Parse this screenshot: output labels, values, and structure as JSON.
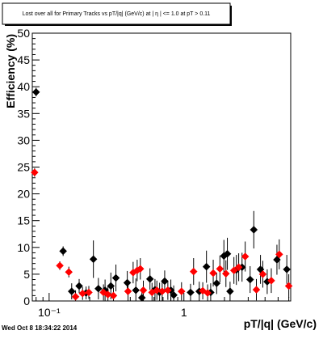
{
  "chart_data": {
    "type": "scatter",
    "title": "Lost over all for Primary Tracks vs pT/|q| (GeV/c) at |  η | <= 1.0 at pT > 0.11",
    "xlabel": "pT/|q| (GeV/c)",
    "ylabel": "Efficiency (%)",
    "x_scale": "log",
    "xlim": [
      0.075,
      6.2
    ],
    "ylim": [
      0,
      50
    ],
    "y_ticks": [
      0,
      5,
      10,
      15,
      20,
      25,
      30,
      35,
      40,
      45,
      50
    ],
    "y_tick_labels": [
      "0",
      "5",
      "10",
      "15",
      "20",
      "25",
      "30",
      "35",
      "40",
      "45",
      "50"
    ],
    "x_major_ticks": [
      0.1,
      1
    ],
    "x_tick_labels": [
      "10⁻¹",
      "1"
    ],
    "grid": false,
    "legend": "none",
    "series": [
      {
        "color": "#000000",
        "marker": "diamond",
        "points": [
          {
            "x": 0.08,
            "y": 39.0,
            "ey": 0.8
          },
          {
            "x": 0.127,
            "y": 9.3,
            "ey": 0.9
          },
          {
            "x": 0.147,
            "y": 1.8,
            "ey": 1.5
          },
          {
            "x": 0.167,
            "y": 2.8,
            "ey": 1.3
          },
          {
            "x": 0.188,
            "y": 1.5,
            "ey": 1.2
          },
          {
            "x": 0.213,
            "y": 7.8,
            "ey": 3.5
          },
          {
            "x": 0.232,
            "y": 2.3,
            "ey": 2.0
          },
          {
            "x": 0.26,
            "y": 2.0,
            "ey": 2.0
          },
          {
            "x": 0.287,
            "y": 2.8,
            "ey": 2.5
          },
          {
            "x": 0.313,
            "y": 4.3,
            "ey": 2.5
          },
          {
            "x": 0.38,
            "y": 3.4,
            "ey": 2.2
          },
          {
            "x": 0.44,
            "y": 2.0,
            "ey": 2.2
          },
          {
            "x": 0.488,
            "y": 0.6,
            "ey": 1.8
          },
          {
            "x": 0.56,
            "y": 4.1,
            "ey": 2.0
          },
          {
            "x": 0.61,
            "y": 2.1,
            "ey": 2.0
          },
          {
            "x": 0.66,
            "y": 1.6,
            "ey": 1.8
          },
          {
            "x": 0.72,
            "y": 3.7,
            "ey": 2.0
          },
          {
            "x": 0.8,
            "y": 2.0,
            "ey": 2.0
          },
          {
            "x": 0.84,
            "y": 1.1,
            "ey": 1.8
          },
          {
            "x": 1.12,
            "y": 1.6,
            "ey": 1.6
          },
          {
            "x": 1.3,
            "y": 1.8,
            "ey": 1.8
          },
          {
            "x": 1.47,
            "y": 6.4,
            "ey": 3.0
          },
          {
            "x": 1.58,
            "y": 1.6,
            "ey": 1.7
          },
          {
            "x": 1.75,
            "y": 3.3,
            "ey": 2.0
          },
          {
            "x": 1.98,
            "y": 8.4,
            "ey": 3.0
          },
          {
            "x": 2.1,
            "y": 8.8,
            "ey": 3.0
          },
          {
            "x": 2.2,
            "y": 1.8,
            "ey": 1.8
          },
          {
            "x": 2.45,
            "y": 5.8,
            "ey": 2.8
          },
          {
            "x": 2.7,
            "y": 6.3,
            "ey": 2.7
          },
          {
            "x": 3.1,
            "y": 4.0,
            "ey": 2.5
          },
          {
            "x": 3.3,
            "y": 13.3,
            "ey": 3.5
          },
          {
            "x": 3.7,
            "y": 5.9,
            "ey": 2.7
          },
          {
            "x": 4.15,
            "y": 3.6,
            "ey": 2.3
          },
          {
            "x": 4.9,
            "y": 7.7,
            "ey": 2.8
          },
          {
            "x": 5.8,
            "y": 5.9,
            "ey": 2.7
          }
        ]
      },
      {
        "color": "#ff0000",
        "marker": "diamond",
        "points": [
          {
            "x": 0.078,
            "y": 24.0,
            "ey": 0.8
          },
          {
            "x": 0.12,
            "y": 6.6,
            "ey": 0.8
          },
          {
            "x": 0.14,
            "y": 5.4,
            "ey": 1.0
          },
          {
            "x": 0.157,
            "y": 0.8,
            "ey": 1.2
          },
          {
            "x": 0.177,
            "y": 1.4,
            "ey": 1.2
          },
          {
            "x": 0.197,
            "y": 1.6,
            "ey": 1.2
          },
          {
            "x": 0.253,
            "y": 1.6,
            "ey": 1.5
          },
          {
            "x": 0.273,
            "y": 1.2,
            "ey": 1.5
          },
          {
            "x": 0.3,
            "y": 1.0,
            "ey": 1.5
          },
          {
            "x": 0.385,
            "y": 1.8,
            "ey": 1.8
          },
          {
            "x": 0.42,
            "y": 5.3,
            "ey": 2.0
          },
          {
            "x": 0.45,
            "y": 5.7,
            "ey": 2.0
          },
          {
            "x": 0.475,
            "y": 6.0,
            "ey": 2.0
          },
          {
            "x": 0.5,
            "y": 2.0,
            "ey": 1.8
          },
          {
            "x": 0.58,
            "y": 1.6,
            "ey": 1.8
          },
          {
            "x": 0.63,
            "y": 2.0,
            "ey": 1.8
          },
          {
            "x": 0.69,
            "y": 1.8,
            "ey": 1.8
          },
          {
            "x": 0.76,
            "y": 2.0,
            "ey": 1.8
          },
          {
            "x": 0.96,
            "y": 1.8,
            "ey": 1.7
          },
          {
            "x": 1.18,
            "y": 5.5,
            "ey": 2.5
          },
          {
            "x": 1.38,
            "y": 1.9,
            "ey": 1.6
          },
          {
            "x": 1.5,
            "y": 1.5,
            "ey": 1.6
          },
          {
            "x": 1.65,
            "y": 5.2,
            "ey": 2.5
          },
          {
            "x": 1.85,
            "y": 6.0,
            "ey": 2.5
          },
          {
            "x": 2.05,
            "y": 5.1,
            "ey": 2.5
          },
          {
            "x": 2.35,
            "y": 5.7,
            "ey": 2.5
          },
          {
            "x": 2.55,
            "y": 6.3,
            "ey": 2.6
          },
          {
            "x": 2.85,
            "y": 8.3,
            "ey": 2.8
          },
          {
            "x": 3.45,
            "y": 2.1,
            "ey": 2.0
          },
          {
            "x": 3.85,
            "y": 5.0,
            "ey": 2.5
          },
          {
            "x": 4.45,
            "y": 3.8,
            "ey": 2.3
          },
          {
            "x": 5.1,
            "y": 8.7,
            "ey": 2.8
          },
          {
            "x": 6.0,
            "y": 2.8,
            "ey": 2.2
          }
        ]
      }
    ]
  },
  "footer": {
    "timestamp": "Wed Oct  8 18:34:22 2014"
  }
}
